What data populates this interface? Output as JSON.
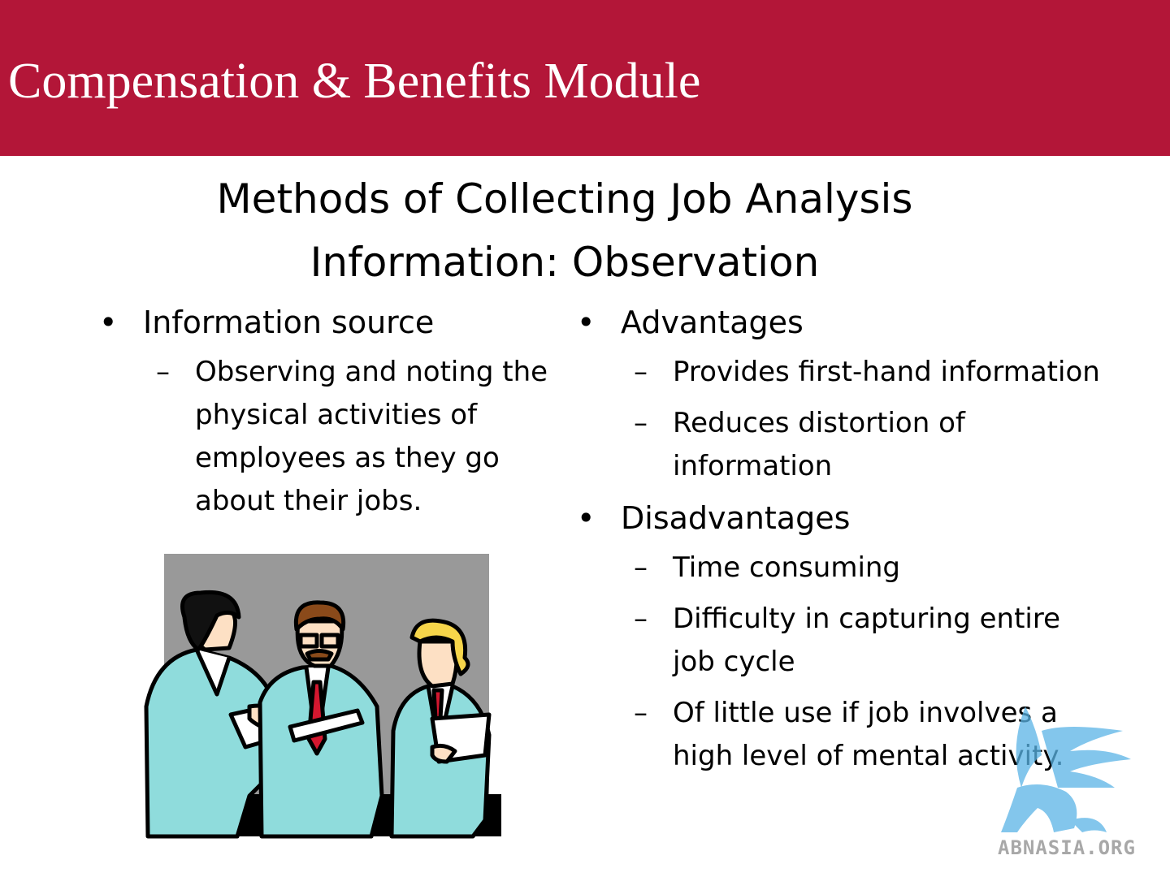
{
  "header": {
    "module_title": "Compensation & Benefits Module",
    "background_color": "#b31638"
  },
  "slide": {
    "title_line1": "Methods of Collecting Job Analysis",
    "title_line2": "Information: Observation"
  },
  "left_column": {
    "bullet": "Information source",
    "sub_items": [
      "Observing and noting the physical activities of employees as they go about their jobs."
    ]
  },
  "right_column": {
    "advantages": {
      "label": "Advantages",
      "items": [
        "Provides first-hand information",
        "Reduces distortion of information"
      ]
    },
    "disadvantages": {
      "label": "Disadvantages",
      "items": [
        "Time consuming",
        "Difficulty in capturing entire job cycle",
        "Of little use if job involves a high level of mental activity."
      ]
    }
  },
  "illustration": {
    "icon": "three-scientists-clipart-icon",
    "coat_color": "#8fdcdc",
    "background_color": "#999999"
  },
  "watermark": {
    "text": "ABNASIA.ORG",
    "icon": "griffin-logo-icon",
    "color": "#5ab4e6"
  }
}
